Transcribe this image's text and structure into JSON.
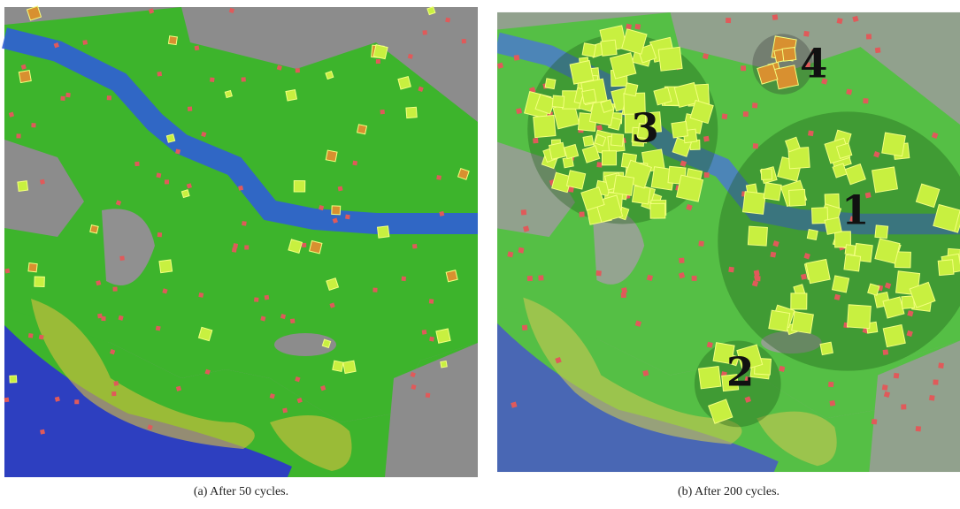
{
  "panels": [
    {
      "caption": "(a) After 50 cycles."
    },
    {
      "caption": "(b) After 200 cycles.",
      "cluster_labels": [
        "1",
        "2",
        "3",
        "4"
      ]
    }
  ]
}
